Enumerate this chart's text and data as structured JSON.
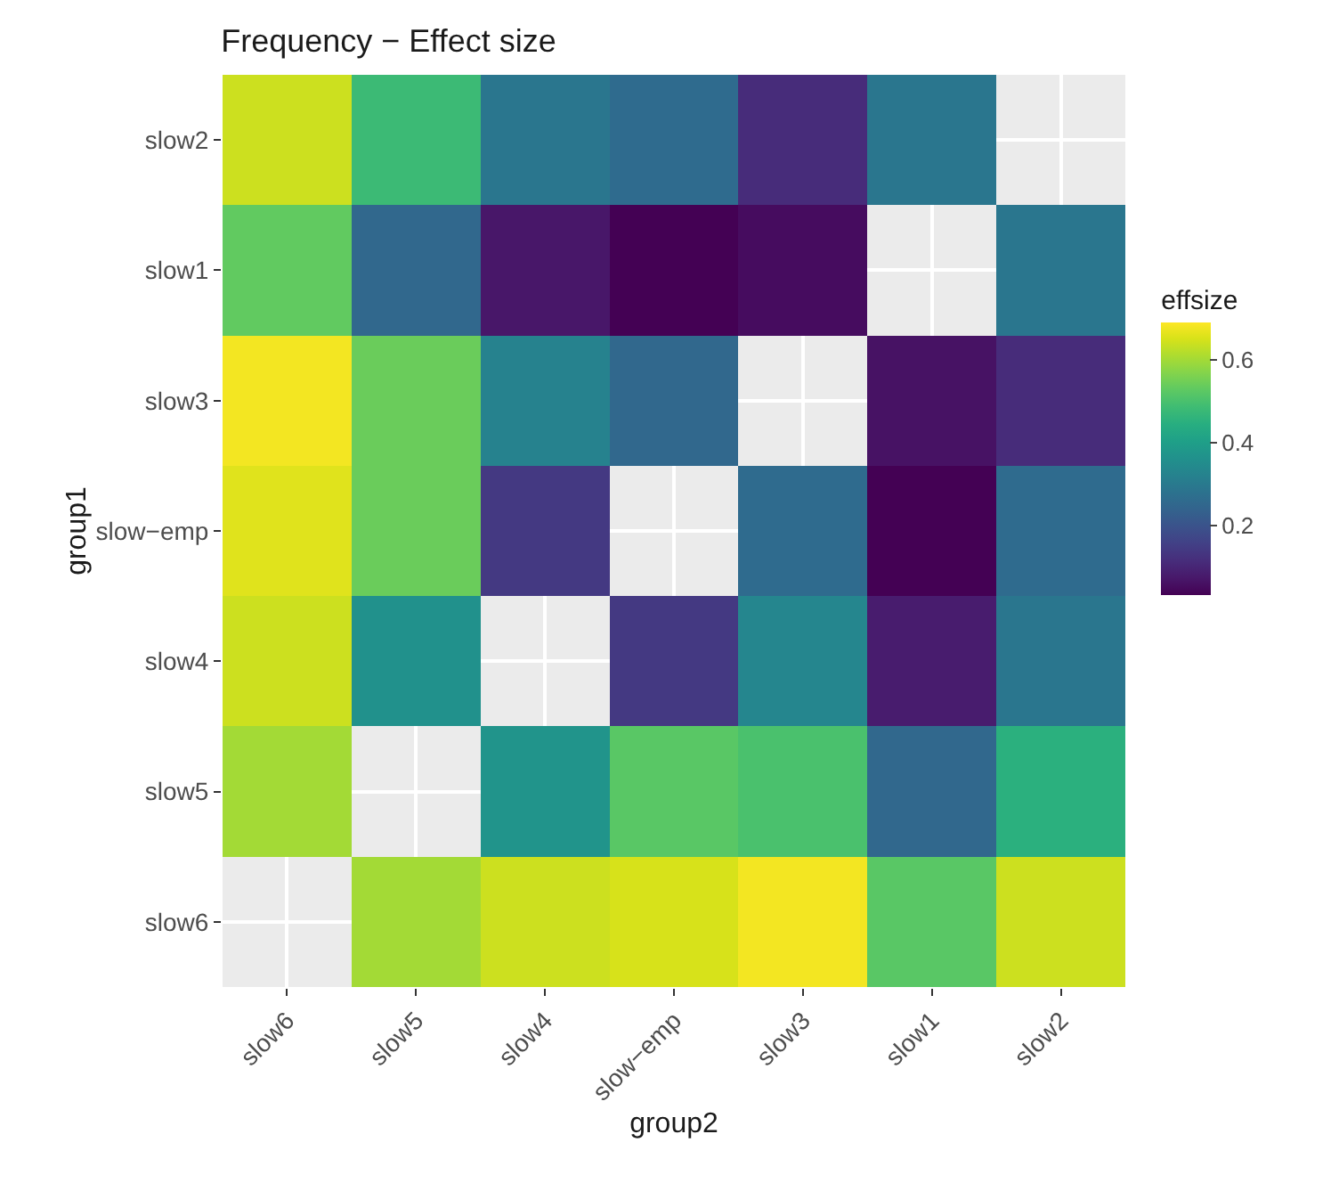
{
  "chart_data": {
    "type": "heatmap",
    "title": "Frequency − Effect size",
    "xlabel": "group2",
    "ylabel": "group1",
    "clabel": "effsize",
    "categories": [
      "slow6",
      "slow5",
      "slow4",
      "slow−emp",
      "slow3",
      "slow1",
      "slow2"
    ],
    "y_categories": [
      "slow2",
      "slow1",
      "slow3",
      "slow−emp",
      "slow4",
      "slow5",
      "slow6"
    ],
    "cells": [
      [
        0.64,
        0.48,
        0.29,
        0.26,
        0.11,
        0.29,
        null
      ],
      [
        0.53,
        0.25,
        0.07,
        0.03,
        0.05,
        null,
        0.29
      ],
      [
        0.68,
        0.54,
        0.32,
        0.25,
        null,
        0.06,
        0.11
      ],
      [
        0.66,
        0.54,
        0.14,
        null,
        0.26,
        0.03,
        0.26
      ],
      [
        0.64,
        0.36,
        null,
        0.14,
        0.33,
        0.08,
        0.29
      ],
      [
        0.6,
        null,
        0.37,
        0.52,
        0.5,
        0.25,
        0.45
      ],
      [
        null,
        0.6,
        0.64,
        0.65,
        0.68,
        0.52,
        0.64
      ]
    ],
    "clim": [
      0.03,
      0.69
    ],
    "cticks": [
      0.2,
      0.4,
      0.6
    ],
    "grid": true
  }
}
